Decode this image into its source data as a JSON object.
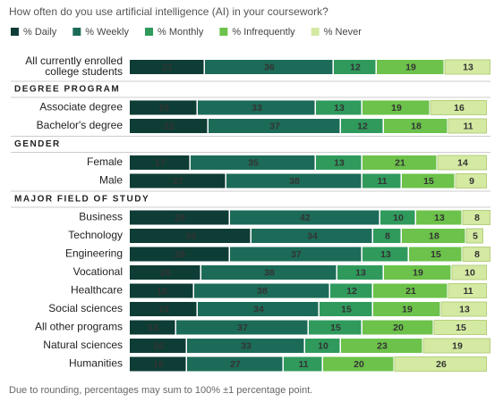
{
  "chart_data": {
    "type": "stacked-bar",
    "title": "How often do you use artificial intelligence (AI) in your coursework?",
    "footnote": "Due to rounding, percentages may sum to 100% ±1 percentage point.",
    "categories": [
      "All currently enrolled college students",
      "DEGREE PROGRAM",
      "Associate degree",
      "Bachelor's degree",
      "GENDER",
      "Female",
      "Male",
      "MAJOR FIELD OF STUDY",
      "Business",
      "Technology",
      "Engineering",
      "Vocational",
      "Healthcare",
      "Social sciences",
      "All other programs",
      "Natural sciences",
      "Humanities"
    ],
    "series": [
      {
        "name": "% Daily",
        "color": "#0e3d36",
        "values": [
          21,
          null,
          19,
          22,
          null,
          17,
          27,
          null,
          28,
          34,
          28,
          20,
          18,
          19,
          13,
          16,
          16
        ]
      },
      {
        "name": "% Weekly",
        "color": "#1c6b58",
        "values": [
          36,
          null,
          33,
          37,
          null,
          35,
          38,
          null,
          42,
          34,
          37,
          38,
          38,
          34,
          37,
          33,
          27
        ]
      },
      {
        "name": "% Monthly",
        "color": "#2f9a5c",
        "values": [
          12,
          null,
          13,
          12,
          null,
          13,
          11,
          null,
          10,
          8,
          13,
          13,
          12,
          15,
          15,
          10,
          11
        ]
      },
      {
        "name": "% Infrequently",
        "color": "#6cc24a",
        "values": [
          19,
          null,
          19,
          18,
          null,
          21,
          15,
          null,
          13,
          18,
          15,
          19,
          21,
          19,
          20,
          23,
          20
        ]
      },
      {
        "name": "% Never",
        "color": "#d4e9a2",
        "values": [
          13,
          null,
          16,
          11,
          null,
          14,
          9,
          null,
          8,
          5,
          8,
          10,
          11,
          13,
          15,
          19,
          26
        ]
      }
    ]
  }
}
